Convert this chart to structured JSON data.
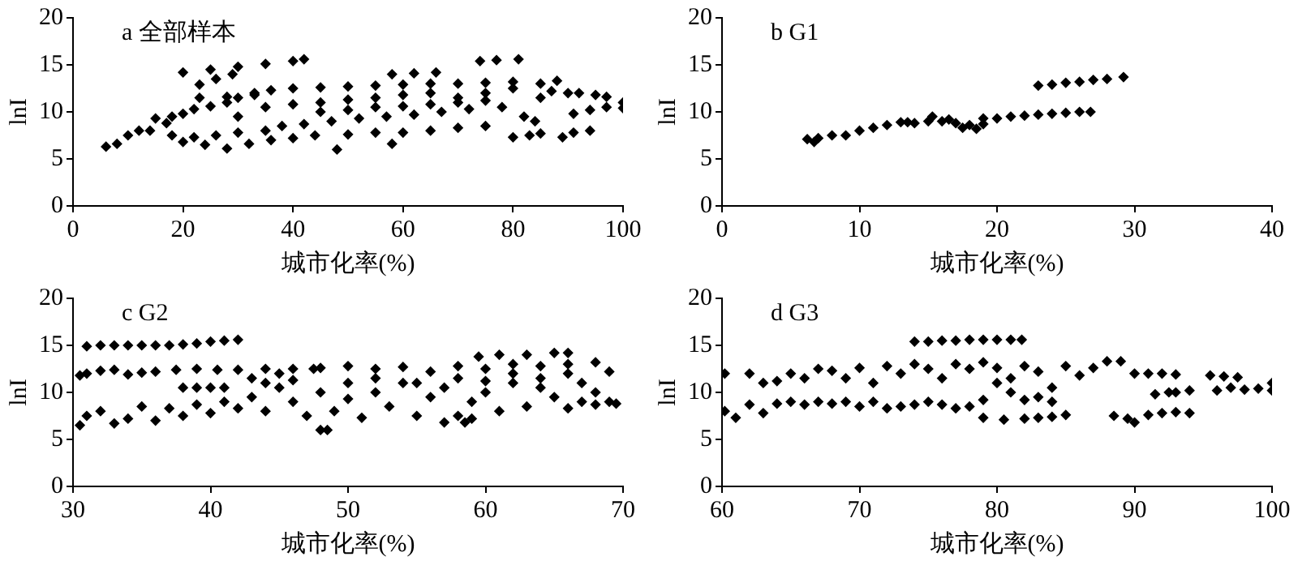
{
  "chart_data": [
    {
      "type": "scatter",
      "title": "a 全部样本",
      "xlabel": "城市化率(%)",
      "ylabel": "lnI",
      "xlim": [
        0,
        100
      ],
      "xticks": [
        0,
        20,
        40,
        60,
        80,
        100
      ],
      "ylim": [
        0,
        20
      ],
      "yticks": [
        0,
        5,
        10,
        15,
        20
      ],
      "marker": "diamond",
      "grid": false,
      "legend": false,
      "series": [
        {
          "color": "#000000",
          "x": [
            6,
            8,
            10,
            12,
            14,
            15,
            17,
            18,
            20,
            22,
            25,
            28,
            30,
            33,
            36,
            40,
            45,
            50,
            55,
            60,
            65,
            70,
            75,
            80,
            85,
            88,
            90,
            92,
            20,
            25,
            30,
            35,
            40,
            42,
            23,
            26,
            29,
            23,
            28,
            33,
            18,
            22,
            26,
            30,
            35,
            38,
            42,
            47,
            52,
            57,
            62,
            67,
            72,
            20,
            24,
            28,
            32,
            36,
            40,
            44,
            48,
            50,
            55,
            58,
            60,
            65,
            70,
            75,
            80,
            83,
            85,
            30,
            35,
            40,
            45,
            50,
            55,
            60,
            65,
            70,
            75,
            78,
            82,
            84,
            58,
            62,
            66,
            74,
            77,
            81,
            89,
            91,
            94,
            91,
            94,
            97,
            100,
            100,
            95,
            97,
            45,
            50,
            55,
            60,
            65,
            70,
            75,
            80,
            85,
            87
          ],
          "values": [
            6.3,
            6.6,
            7.5,
            8,
            8,
            9.3,
            8.8,
            9.5,
            9.8,
            10.3,
            10.6,
            11,
            11.5,
            12,
            12.3,
            12.5,
            12.6,
            12.7,
            12.8,
            12.9,
            13,
            13,
            13.1,
            13.2,
            13,
            13.3,
            12,
            12,
            14.2,
            14.5,
            14.8,
            15.1,
            15.4,
            15.6,
            12.9,
            13.5,
            14,
            11.5,
            11.6,
            11.8,
            7.5,
            7.3,
            7.5,
            7.8,
            8,
            8.5,
            8.7,
            9,
            9.3,
            9.5,
            9.7,
            10,
            10.3,
            6.8,
            6.5,
            6.1,
            6.6,
            7,
            7.2,
            7.5,
            6,
            7.6,
            7.8,
            6.6,
            7.8,
            8,
            8.3,
            8.5,
            7.3,
            7.5,
            7.7,
            9.5,
            10.5,
            10.8,
            11,
            11.3,
            11.5,
            11.8,
            12,
            11.5,
            11.2,
            10.5,
            9.5,
            9,
            14,
            14.1,
            14.2,
            15.4,
            15.5,
            15.6,
            7.3,
            7.8,
            8,
            9.8,
            10.2,
            10.5,
            11,
            10.4,
            11.8,
            11.6,
            10,
            10.2,
            10.5,
            10.6,
            10.8,
            11,
            12,
            12.5,
            11.5,
            12.2
          ]
        }
      ]
    },
    {
      "type": "scatter",
      "title": "b G1",
      "xlabel": "城市化率(%)",
      "ylabel": "lnI",
      "xlim": [
        0,
        40
      ],
      "xticks": [
        0,
        10,
        20,
        30,
        40
      ],
      "ylim": [
        0,
        20
      ],
      "yticks": [
        0,
        5,
        10,
        15,
        20
      ],
      "marker": "diamond",
      "grid": false,
      "legend": false,
      "series": [
        {
          "color": "#000000",
          "x": [
            6.2,
            6.7,
            7,
            8,
            9,
            10,
            11,
            12,
            13,
            14,
            15,
            15.3,
            16,
            17,
            17.5,
            18,
            18.5,
            19,
            20,
            21,
            22,
            23,
            24,
            25,
            26,
            26.8,
            23,
            24,
            25,
            26,
            27,
            28,
            29.2,
            13.5,
            16.5,
            19
          ],
          "values": [
            7.1,
            6.8,
            7.2,
            7.5,
            7.5,
            8,
            8.3,
            8.6,
            8.9,
            8.8,
            9,
            9.5,
            9,
            8.8,
            8.3,
            8.6,
            8.2,
            9.3,
            9.3,
            9.5,
            9.6,
            9.7,
            9.8,
            9.9,
            10,
            10,
            12.8,
            12.9,
            13.1,
            13.2,
            13.4,
            13.5,
            13.7,
            8.9,
            9.2,
            8.7
          ]
        }
      ]
    },
    {
      "type": "scatter",
      "title": "c G2",
      "xlabel": "城市化率(%)",
      "ylabel": "lnI",
      "xlim": [
        30,
        70
      ],
      "xticks": [
        30,
        40,
        50,
        60,
        70
      ],
      "ylim": [
        0,
        20
      ],
      "yticks": [
        0,
        5,
        10,
        15,
        20
      ],
      "marker": "diamond",
      "grid": false,
      "legend": false,
      "series": [
        {
          "color": "#000000",
          "x": [
            31,
            32,
            33,
            34,
            35,
            36,
            37,
            38,
            39,
            40,
            41,
            42,
            30.5,
            31,
            32,
            33,
            34,
            35,
            36,
            37.5,
            39,
            40.5,
            42,
            44,
            46,
            47.5,
            38,
            39,
            40,
            41,
            30.5,
            31,
            32,
            33,
            34,
            35,
            36,
            37,
            38,
            39,
            40,
            41,
            42,
            43,
            44,
            45,
            46,
            47,
            48,
            49,
            50,
            51,
            52,
            53,
            54,
            55,
            56,
            57,
            58,
            59,
            60,
            61,
            62,
            63,
            64,
            65,
            66,
            67,
            68,
            69,
            69.5,
            43,
            44,
            45,
            46,
            48,
            50,
            52,
            54,
            56,
            58,
            60,
            62,
            64,
            66,
            68,
            69,
            50,
            52,
            55,
            58,
            60,
            62,
            64,
            66,
            67,
            68,
            59.5,
            61,
            63,
            65,
            66,
            48,
            48.5,
            57,
            58.5,
            59
          ],
          "values": [
            14.9,
            15,
            15,
            15,
            15,
            15,
            15,
            15.1,
            15.2,
            15.4,
            15.5,
            15.6,
            11.8,
            12,
            12.3,
            12.4,
            11.9,
            12.1,
            12.2,
            12.4,
            12.5,
            12.4,
            12.4,
            12.5,
            12.5,
            12.5,
            10.5,
            10.5,
            10.5,
            10.5,
            6.5,
            7.5,
            8,
            6.7,
            7.2,
            8.5,
            7,
            8.3,
            7.5,
            8.7,
            7.8,
            9,
            8.3,
            9.5,
            8,
            10.5,
            9,
            7.5,
            10,
            8,
            9.3,
            7.3,
            10,
            8.5,
            11,
            7.5,
            9.5,
            10.5,
            7.5,
            9,
            10,
            8,
            11,
            8.5,
            10.5,
            9.5,
            8.3,
            9,
            8.7,
            9,
            8.8,
            11.5,
            11,
            12,
            11.3,
            12.6,
            12.8,
            12.5,
            12.7,
            12.2,
            12.8,
            12.5,
            13,
            12.8,
            13,
            13.2,
            12.2,
            11,
            11.5,
            11,
            11.5,
            11.2,
            12,
            11.5,
            12,
            11,
            10,
            13.8,
            14,
            14,
            14.2,
            14.2,
            6,
            6,
            6.8,
            6.8,
            7.2
          ]
        }
      ]
    },
    {
      "type": "scatter",
      "title": "d G3",
      "xlabel": "城市化率(%)",
      "ylabel": "lnI",
      "xlim": [
        60,
        100
      ],
      "xticks": [
        60,
        70,
        80,
        90,
        100
      ],
      "ylim": [
        0,
        20
      ],
      "yticks": [
        0,
        5,
        10,
        15,
        20
      ],
      "marker": "diamond",
      "grid": false,
      "legend": false,
      "series": [
        {
          "color": "#000000",
          "x": [
            60.2,
            60.2,
            61,
            62,
            63,
            64,
            65,
            66,
            67,
            68,
            69,
            70,
            71,
            72,
            73,
            74,
            75,
            76,
            77,
            78,
            79,
            62,
            63,
            64,
            65,
            66,
            67,
            68,
            69,
            70,
            71,
            72,
            73,
            74,
            75,
            76,
            77,
            78,
            79,
            80,
            81,
            82,
            83,
            84,
            85,
            86,
            87,
            88,
            89,
            90,
            91,
            92,
            93,
            80,
            81,
            82,
            83,
            84,
            74,
            75,
            76,
            77,
            78,
            79,
            80,
            81,
            81.8,
            79,
            80.5,
            82,
            83,
            84,
            85,
            88.5,
            89.5,
            90,
            91,
            92,
            93,
            94,
            91.5,
            92.5,
            93,
            94,
            95.5,
            96.5,
            97.5,
            96,
            97,
            98,
            99,
            100,
            100
          ],
          "values": [
            12,
            8,
            7.3,
            8.7,
            7.8,
            8.8,
            9,
            8.7,
            9,
            8.8,
            9,
            8.5,
            9,
            8.3,
            8.5,
            8.7,
            9,
            8.7,
            8.3,
            8.5,
            9.2,
            12,
            11,
            11.2,
            12,
            11.5,
            12.5,
            12.3,
            11.5,
            12.6,
            11,
            12.8,
            12,
            13,
            12.5,
            11.5,
            13,
            12.5,
            13.2,
            12.6,
            11.5,
            12.8,
            12.2,
            10.5,
            12.8,
            11.8,
            12.6,
            13.3,
            13.3,
            12,
            12,
            12,
            11.9,
            11,
            10,
            9.2,
            9.5,
            9,
            15.4,
            15.4,
            15.5,
            15.5,
            15.6,
            15.6,
            15.6,
            15.6,
            15.6,
            7.3,
            7.1,
            7.2,
            7.3,
            7.4,
            7.6,
            7.5,
            7.2,
            6.8,
            7.6,
            7.8,
            7.9,
            7.8,
            9.8,
            10,
            10,
            10.2,
            11.8,
            11.7,
            11.6,
            10.2,
            10.5,
            10.3,
            10.4,
            10.2,
            11
          ]
        }
      ]
    }
  ]
}
